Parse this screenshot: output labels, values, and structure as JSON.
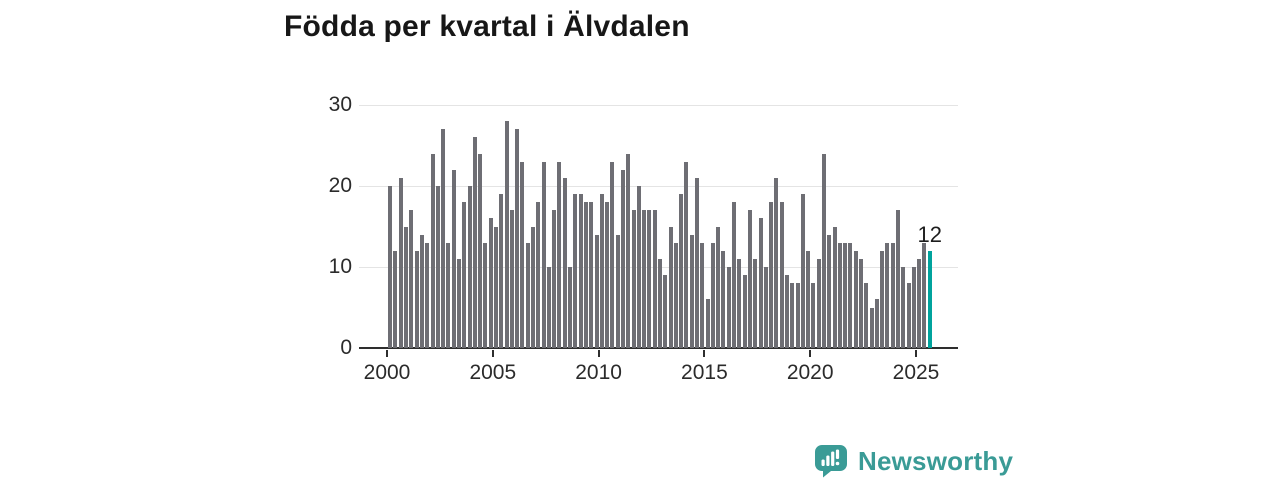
{
  "header": {
    "title": "Födda per kvartal i Älvdalen"
  },
  "chart_data": {
    "type": "bar",
    "title": "Födda per kvartal i Älvdalen",
    "x_unit": "quarter",
    "x_range_start": "2000 Q1",
    "x_range_end": "2025 Q3",
    "x_tick_labels": [
      "2000",
      "2005",
      "2010",
      "2015",
      "2020",
      "2025"
    ],
    "y_tick_labels": [
      "0",
      "10",
      "20",
      "30"
    ],
    "ylim": [
      0,
      30
    ],
    "grid": "horizontal",
    "legend": "none",
    "values": [
      20,
      12,
      21,
      15,
      17,
      12,
      14,
      13,
      24,
      20,
      27,
      13,
      22,
      11,
      18,
      20,
      26,
      24,
      13,
      16,
      15,
      19,
      28,
      17,
      27,
      23,
      13,
      15,
      18,
      23,
      10,
      17,
      23,
      21,
      10,
      19,
      19,
      18,
      18,
      14,
      19,
      18,
      23,
      14,
      22,
      24,
      17,
      20,
      17,
      17,
      17,
      11,
      9,
      15,
      13,
      19,
      23,
      14,
      21,
      13,
      6,
      13,
      15,
      12,
      10,
      18,
      11,
      9,
      17,
      11,
      16,
      10,
      18,
      21,
      18,
      9,
      8,
      8,
      19,
      12,
      8,
      11,
      24,
      14,
      15,
      13,
      13,
      13,
      12,
      11,
      8,
      5,
      6,
      12,
      13,
      13,
      17,
      10,
      8,
      10,
      11,
      13,
      12
    ],
    "bar_color": "#6e6e74",
    "highlight_color": "#00a39d",
    "highlight_index": 102,
    "annotation": {
      "text": "12",
      "index": 102
    }
  },
  "logo": {
    "text": "Newsworthy",
    "color": "#3a9b96",
    "icon": "bar-chart-speech-bubble"
  }
}
